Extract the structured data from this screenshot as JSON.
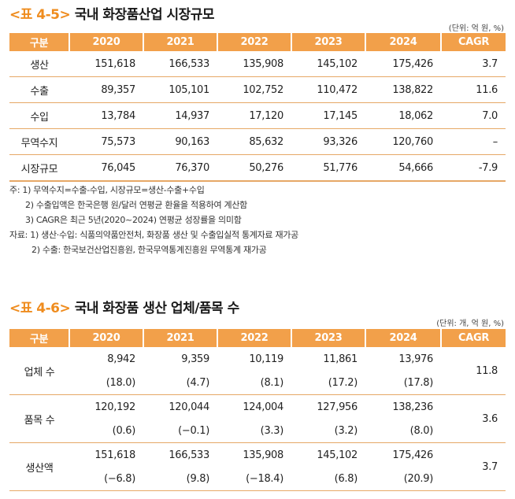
{
  "table45": {
    "tag": "<표 4-5>",
    "title": "국내 화장품산업 시장규모",
    "unit": "(단위: 억 원, %)",
    "headers": [
      "구분",
      "2020",
      "2021",
      "2022",
      "2023",
      "2024",
      "CAGR"
    ],
    "rows": [
      [
        "생산",
        "151,618",
        "166,533",
        "135,908",
        "145,102",
        "175,426",
        "3.7"
      ],
      [
        "수출",
        "89,357",
        "105,101",
        "102,752",
        "110,472",
        "138,822",
        "11.6"
      ],
      [
        "수입",
        "13,784",
        "14,937",
        "17,120",
        "17,145",
        "18,062",
        "7.0"
      ],
      [
        "무역수지",
        "75,573",
        "90,163",
        "85,632",
        "93,326",
        "120,760",
        "–"
      ],
      [
        "시장규모",
        "76,045",
        "76,370",
        "50,276",
        "51,776",
        "54,666",
        "-7.9"
      ]
    ]
  },
  "notes": [
    "주: 1) 무역수지=수출-수입, 시장규모=생산-수출+수입",
    "2) 수출입액은 한국은행 원/달러 연평균 환율을 적용하여 계산함",
    "3) CAGR은 최근 5년(2020~2024) 연평균 성장률을 의미함",
    "자료: 1) 생산·수입: 식품의약품안전처, 화장품 생산 및 수출입실적 통계자료 재가공",
    "2) 수출: 한국보건산업진흥원, 한국무역통계진흥원 무역통계 재가공"
  ],
  "table46": {
    "tag": "<표 4-6>",
    "title": "국내 화장품 생산 업체/품목 수",
    "unit": "(단위: 개, 억 원, %)",
    "headers": [
      "구분",
      "2020",
      "2021",
      "2022",
      "2023",
      "2024",
      "CAGR"
    ],
    "groups": [
      {
        "label": "업체 수",
        "values": [
          "8,942",
          "9,359",
          "10,119",
          "11,861",
          "13,976"
        ],
        "pct": [
          "(18.0)",
          "(4.7)",
          "(8.1)",
          "(17.2)",
          "(17.8)"
        ],
        "cagr": "11.8"
      },
      {
        "label": "품목 수",
        "values": [
          "120,192",
          "120,044",
          "124,004",
          "127,956",
          "138,236"
        ],
        "pct": [
          "(0.6)",
          "(−0.1)",
          "(3.3)",
          "(3.2)",
          "(8.0)"
        ],
        "cagr": "3.6"
      },
      {
        "label": "생산액",
        "values": [
          "151,618",
          "166,533",
          "135,908",
          "145,102",
          "175,426"
        ],
        "pct": [
          "(−6.8)",
          "(9.8)",
          "(−18.4)",
          "(6.8)",
          "(20.9)"
        ],
        "cagr": "3.7"
      }
    ]
  }
}
